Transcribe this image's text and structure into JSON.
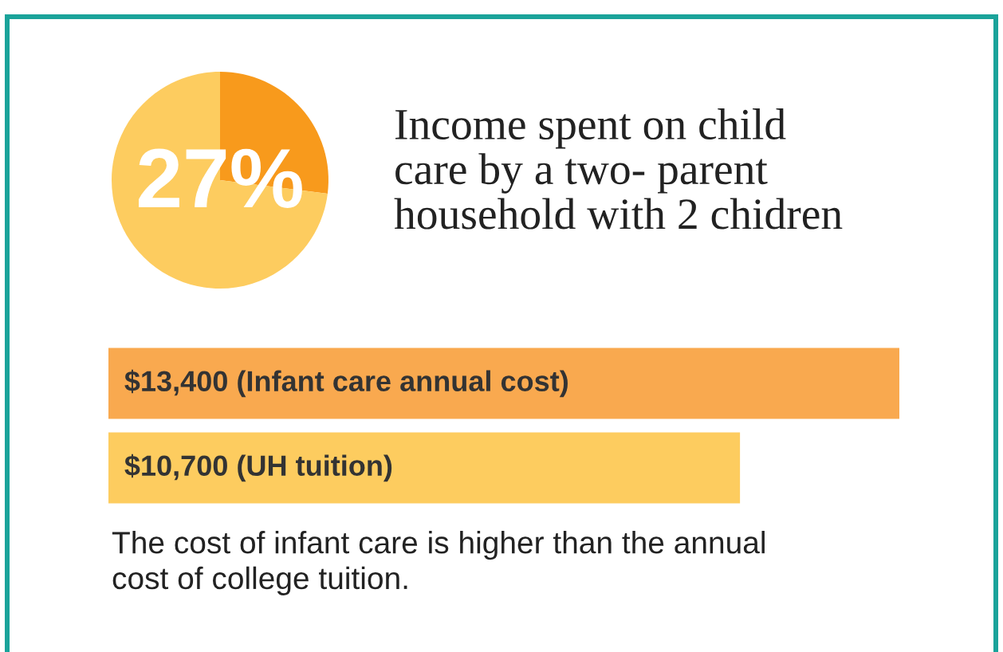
{
  "chart_data": [
    {
      "type": "pie",
      "title": "Income spent on child\ncare by a two- parent\nhousehold with 2 chidren",
      "categories": [
        null,
        null
      ],
      "values": [
        27,
        73
      ],
      "colors": [
        "#f89a1c",
        "#fdcc5f"
      ],
      "value_labels": [
        "27%",
        null
      ]
    },
    {
      "type": "bar",
      "orientation": "horizontal",
      "categories": [
        null,
        null
      ],
      "values": [
        13400,
        10700
      ],
      "colors": [
        "#f9a94f",
        "#fdcc5f"
      ],
      "value_labels": [
        "$13,400 (Infant care annual cost)",
        "$10,700 (UH tuition)"
      ],
      "annotations": [
        "The cost of infant care is higher than the annual\ncost of college tuition."
      ]
    }
  ]
}
